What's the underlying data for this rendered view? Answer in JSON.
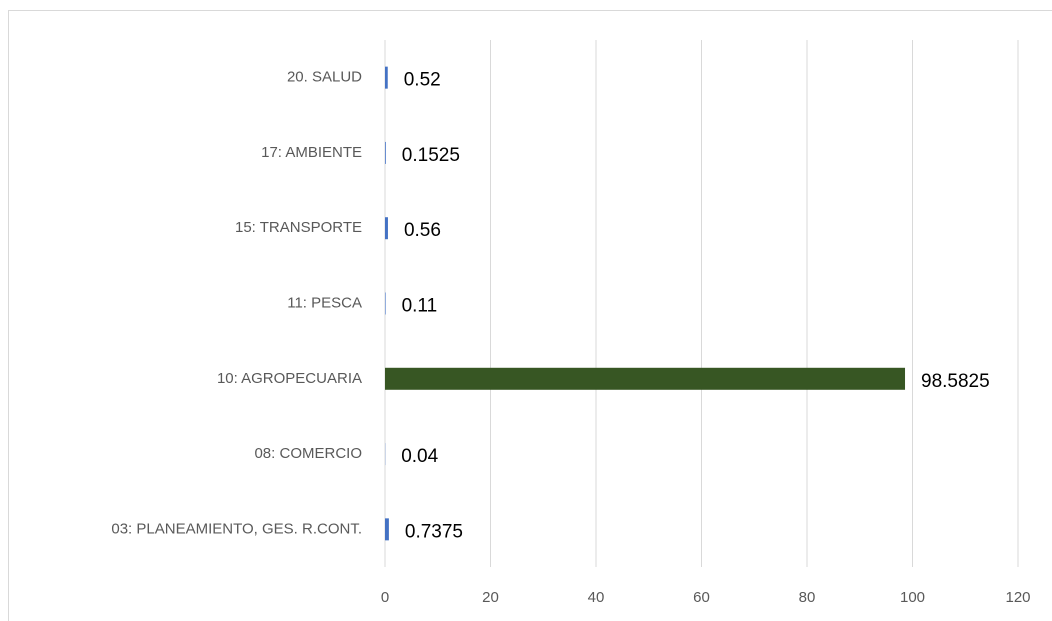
{
  "chart_data": {
    "type": "barh",
    "categories": [
      "20. SALUD",
      "17: AMBIENTE",
      "15: TRANSPORTE",
      "11: PESCA",
      "10: AGROPECUARIA",
      "08: COMERCIO",
      "03: PLANEAMIENTO, GES. R.CONT."
    ],
    "values": [
      0.52,
      0.1525,
      0.56,
      0.11,
      98.5825,
      0.04,
      0.7375
    ],
    "colors": [
      "#4472c4",
      "#4472c4",
      "#4472c4",
      "#4472c4",
      "#375623",
      "#4472c4",
      "#4472c4"
    ],
    "xlim": [
      0,
      120
    ],
    "xticks": [
      0,
      20,
      40,
      60,
      80,
      100,
      120
    ],
    "grid": true
  }
}
